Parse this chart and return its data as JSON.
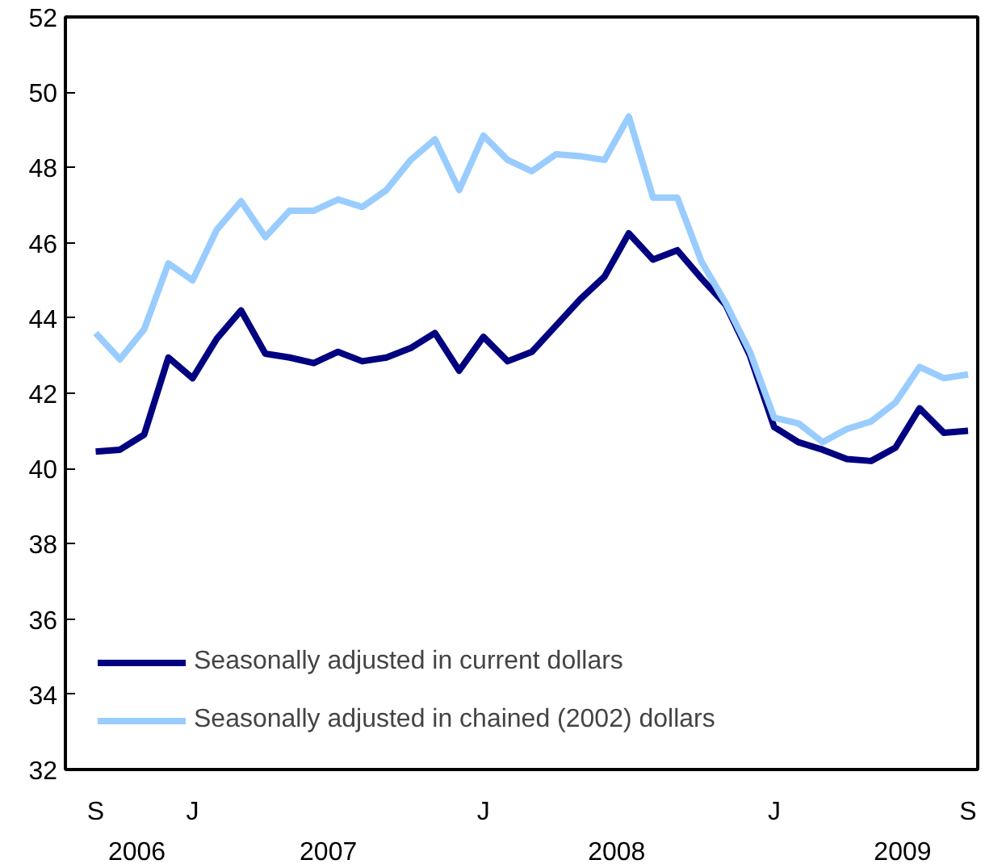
{
  "chart_data": {
    "type": "line",
    "categories": [
      "S",
      null,
      null,
      null,
      "J",
      null,
      null,
      null,
      null,
      null,
      null,
      null,
      null,
      null,
      null,
      null,
      "J",
      null,
      null,
      null,
      null,
      null,
      null,
      null,
      null,
      null,
      null,
      null,
      "J",
      null,
      null,
      null,
      null,
      null,
      null,
      null,
      "S"
    ],
    "series": [
      {
        "name": "Seasonally adjusted in current dollars",
        "color": "#000080",
        "values": [
          40.45,
          40.5,
          40.9,
          42.95,
          42.4,
          43.45,
          44.2,
          43.05,
          42.95,
          42.8,
          43.1,
          42.85,
          42.95,
          43.2,
          43.6,
          42.6,
          43.5,
          42.85,
          43.1,
          43.8,
          44.5,
          45.1,
          46.25,
          45.55,
          45.8,
          45.05,
          44.35,
          43.0,
          41.1,
          40.7,
          40.5,
          40.25,
          40.2,
          40.55,
          41.6,
          40.95,
          41.0
        ]
      },
      {
        "name": "Seasonally adjusted in chained (2002) dollars",
        "color": "#99ccff",
        "values": [
          43.6,
          42.9,
          43.7,
          45.45,
          45.0,
          46.35,
          47.1,
          46.15,
          46.85,
          46.85,
          47.15,
          46.95,
          47.4,
          48.2,
          48.75,
          47.4,
          48.85,
          48.2,
          47.9,
          48.35,
          48.3,
          48.2,
          49.35,
          47.2,
          47.2,
          45.5,
          44.4,
          43.1,
          41.35,
          41.2,
          40.7,
          41.05,
          41.25,
          41.75,
          42.7,
          42.4,
          42.5
        ]
      }
    ],
    "ylim": [
      32,
      52
    ],
    "yticks": [
      32,
      34,
      36,
      38,
      40,
      42,
      44,
      46,
      48,
      50,
      52
    ],
    "annotations": [
      "2006",
      "2007",
      "2008",
      "2009"
    ],
    "grid": false,
    "legend": "bottom left",
    "marker": "none",
    "line_style": "solid"
  }
}
